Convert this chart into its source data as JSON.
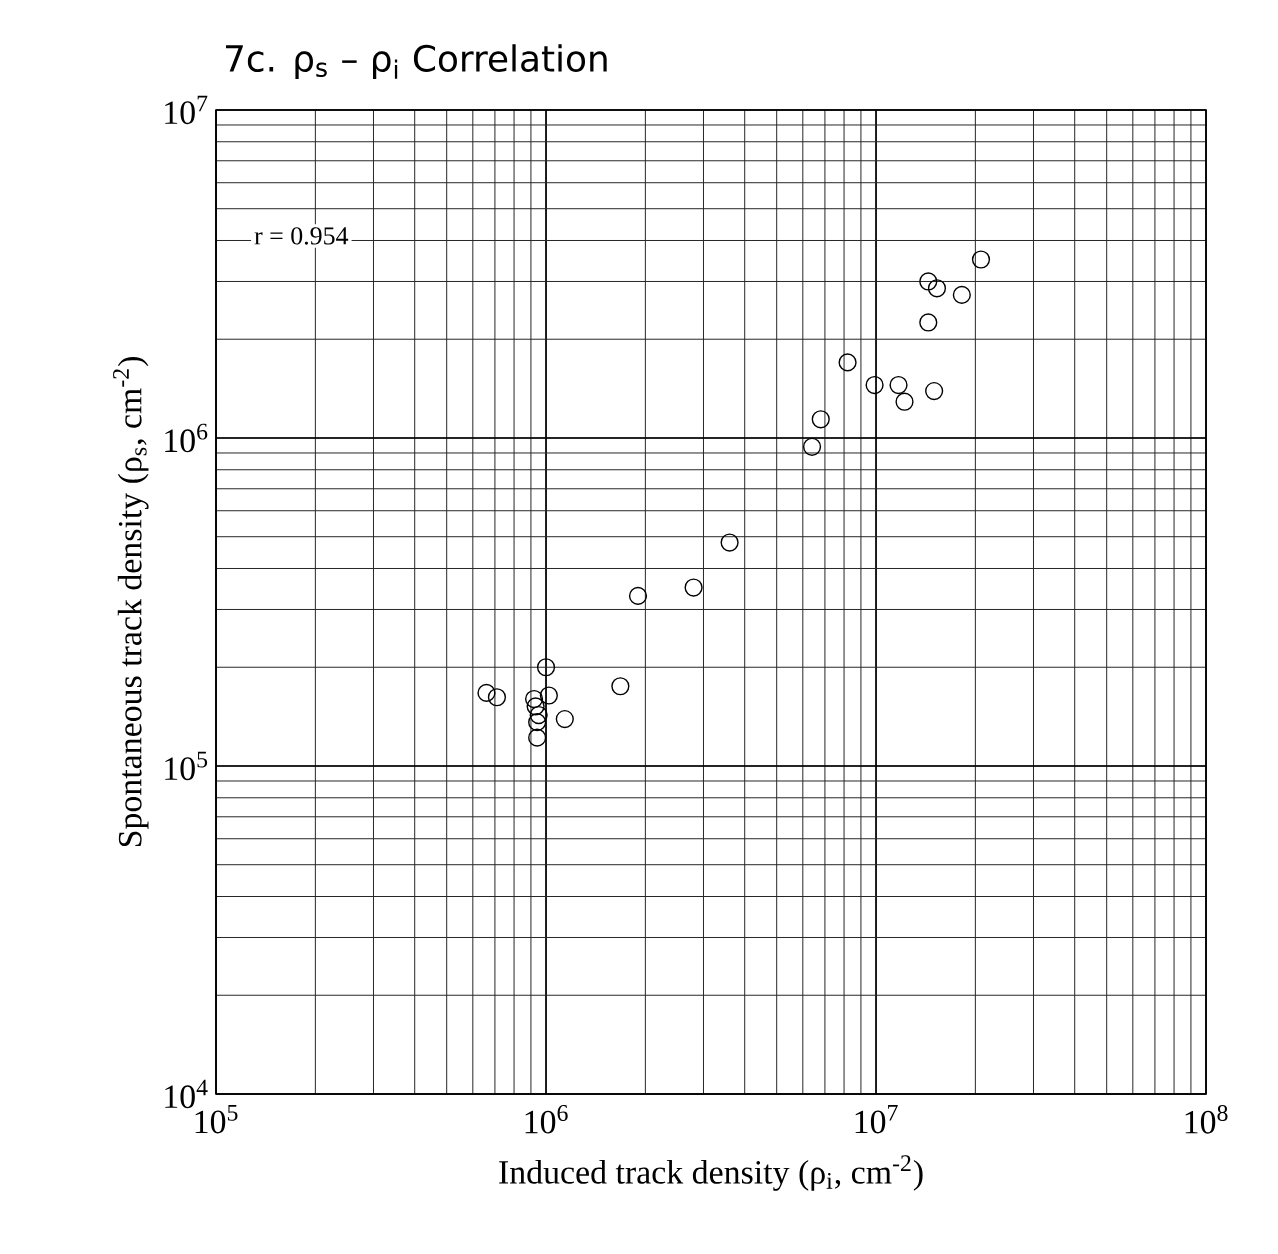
{
  "chart_data": {
    "type": "scatter",
    "title": "7c. ρ$_{s}$ – ρ$_{i}$ Correlation",
    "xlabel": "Induced track density (ρ$_{i}$, cm$^{-2}$)",
    "ylabel": "Spontaneous track density (ρ$_{s}$, cm$^{-2}$)",
    "annotations": [
      "r = 0.954"
    ],
    "log": "xy",
    "grid": true,
    "marker": "circle",
    "xlim": [
      100000,
      100000000
    ],
    "ylim": [
      10000,
      10000000
    ],
    "xticks": [
      {
        "value": 100000,
        "label": "10$^{5}$"
      },
      {
        "value": 1000000,
        "label": "10$^{6}$"
      },
      {
        "value": 10000000,
        "label": "10$^{7}$"
      },
      {
        "value": 100000000,
        "label": "10$^{8}$"
      }
    ],
    "yticks": [
      {
        "value": 10000,
        "label": "10$^{4}$"
      },
      {
        "value": 100000,
        "label": "10$^{5}$"
      },
      {
        "value": 1000000,
        "label": "10$^{6}$"
      },
      {
        "value": 10000000,
        "label": "10$^{7}$"
      }
    ],
    "series": [
      {
        "color": "#000000",
        "x": [
          1000000,
          660000,
          710000,
          920000,
          1020000,
          930000,
          950000,
          940000,
          1140000,
          940000,
          1680000,
          1900000,
          2800000,
          3600000,
          6400000,
          6800000,
          8200000,
          9900000,
          11700000,
          12200000,
          15000000,
          14400000,
          14400000,
          15300000,
          18200000,
          20800000
        ],
        "values": [
          200000,
          167000,
          162000,
          160000,
          164000,
          152000,
          143000,
          136000,
          139000,
          122000,
          175000,
          330000,
          350000,
          480000,
          940000,
          1140000,
          1700000,
          1450000,
          1450000,
          1290000,
          1390000,
          2250000,
          3000000,
          2860000,
          2730000,
          3500000
        ]
      }
    ]
  }
}
